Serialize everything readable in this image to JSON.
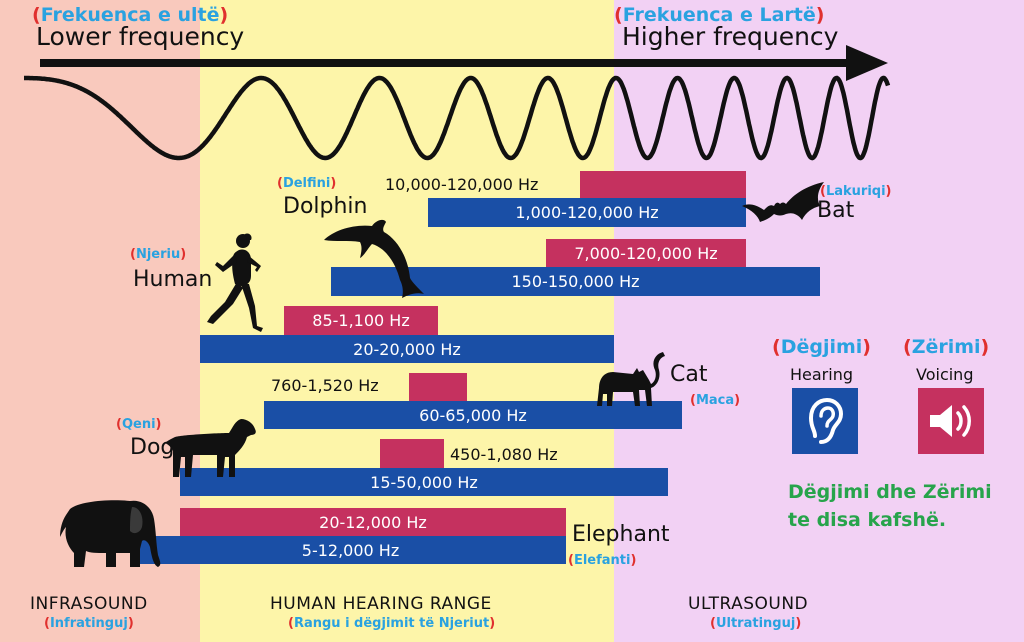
{
  "header": {
    "lower_translation": "Frekuenca e ultë",
    "lower_label": "Lower frequency",
    "higher_translation": "Frekuenca e Lartë",
    "higher_label": "Higher frequency"
  },
  "zones": {
    "infra": {
      "label": "INFRASOUND",
      "translation": "Infratinguj"
    },
    "human": {
      "label": "HUMAN HEARING RANGE",
      "translation": "Rangu i dëgjimit të Njeriut"
    },
    "ultra": {
      "label": "ULTRASOUND",
      "translation": "Ultratinguj"
    }
  },
  "animals": {
    "dolphin": {
      "name": "Dolphin",
      "translation": "Delfini",
      "voicing": "7,000-120,000 Hz",
      "hearing": "150-150,000 Hz"
    },
    "bat": {
      "name": "Bat",
      "translation": "Lakuriqi",
      "voicing": "10,000-120,000 Hz",
      "hearing": "1,000-120,000 Hz"
    },
    "human": {
      "name": "Human",
      "translation": "Njeriu",
      "voicing": "85-1,100 Hz",
      "hearing": "20-20,000 Hz"
    },
    "cat": {
      "name": "Cat",
      "translation": "Maca",
      "voicing": "760-1,520 Hz",
      "hearing": "60-65,000 Hz"
    },
    "dog": {
      "name": "Dog",
      "translation": "Qeni",
      "voicing": "450-1,080 Hz",
      "hearing": "15-50,000 Hz"
    },
    "elephant": {
      "name": "Elephant",
      "translation": "Elefanti",
      "voicing": "20-12,000 Hz",
      "hearing": "5-12,000 Hz"
    }
  },
  "legend": {
    "hearing_translation": "Dëgjimi",
    "hearing_label": "Hearing",
    "voicing_translation": "Zërimi",
    "voicing_label": "Voicing",
    "caption_line1": "Dëgjimi dhe Zërimi",
    "caption_line2": "te disa kafshë."
  },
  "colors": {
    "hearing_bar": "#1a4fa6",
    "voicing_bar": "#c5315f",
    "infrasound_bg": "#f9c9bd",
    "human_bg": "#fdf5a9",
    "ultrasound_bg": "#f2d1f4",
    "translation_parens": "#e0302e",
    "translation_text": "#2aa2e0",
    "caption": "#27a44b"
  },
  "icons": [
    "arrow-right-icon",
    "sine-wave-icon",
    "dolphin-icon",
    "bat-icon",
    "human-runner-icon",
    "cat-icon",
    "dog-icon",
    "elephant-icon",
    "ear-icon",
    "speaker-icon"
  ]
}
